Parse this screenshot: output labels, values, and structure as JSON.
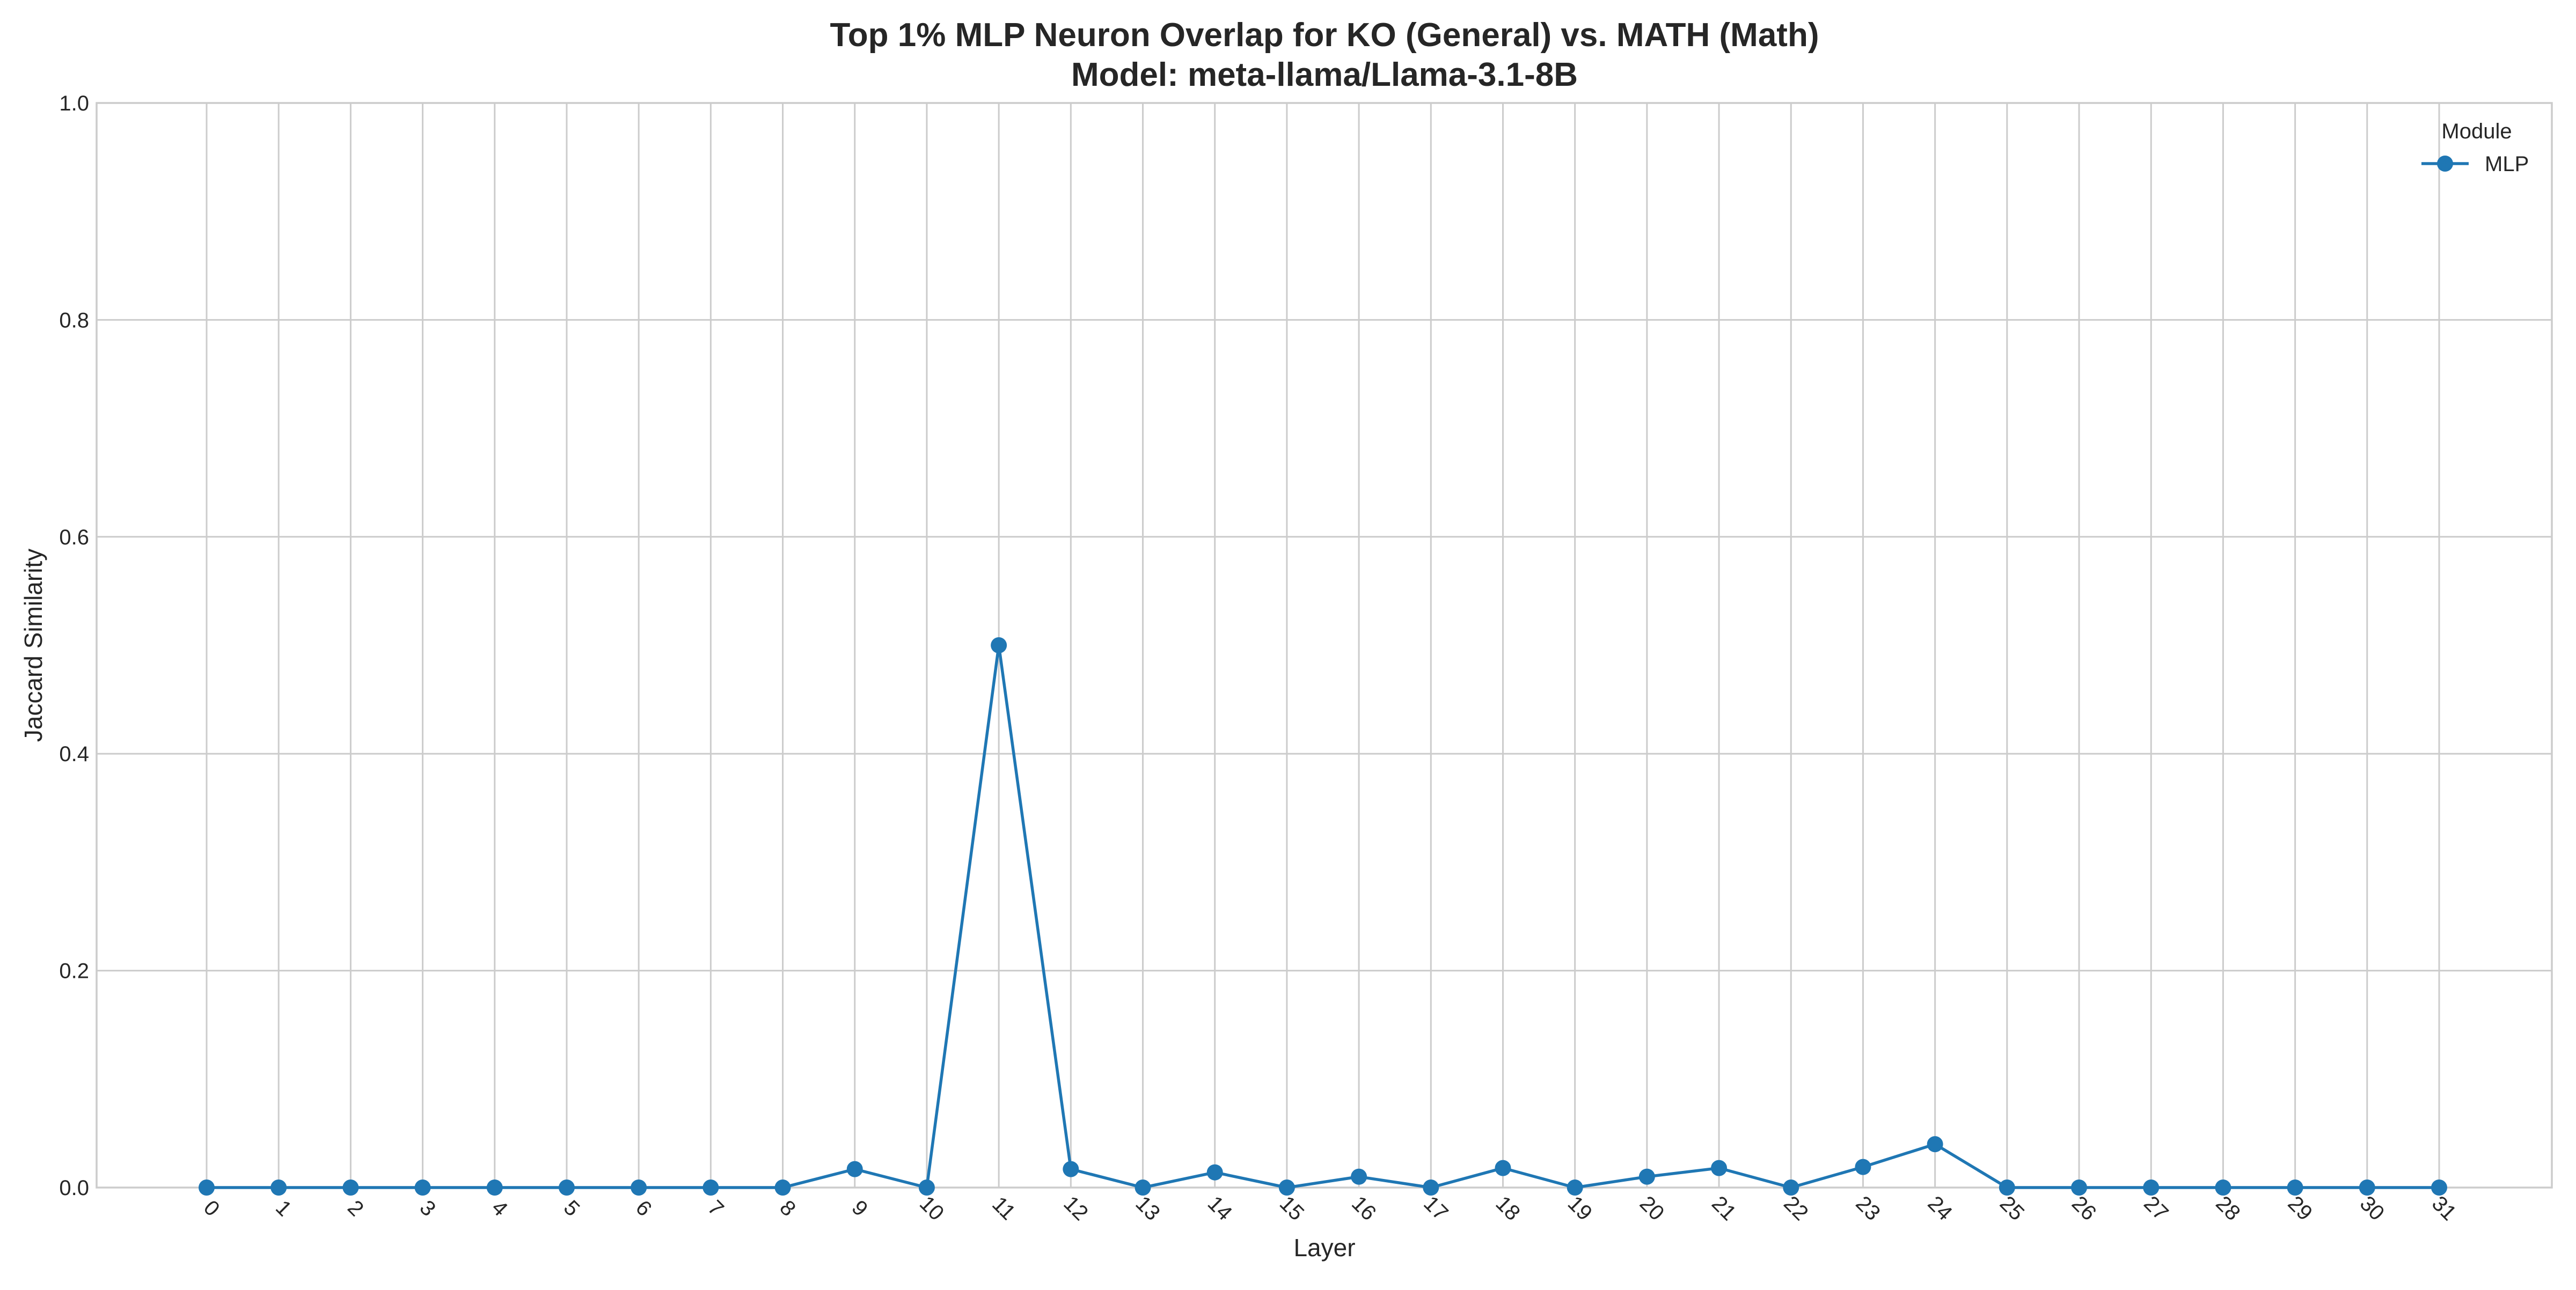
{
  "chart_data": {
    "type": "line",
    "title": "Top 1% MLP Neuron Overlap for KO (General) vs. MATH (Math)",
    "subtitle": "Model: meta-llama/Llama-3.1-8B",
    "xlabel": "Layer",
    "ylabel": "Jaccard Similarity",
    "ylim": [
      0,
      1.0
    ],
    "y_ticks": [
      "0.0",
      "0.2",
      "0.4",
      "0.6",
      "0.8",
      "1.0"
    ],
    "x": [
      0,
      1,
      2,
      3,
      4,
      5,
      6,
      7,
      8,
      9,
      10,
      11,
      12,
      13,
      14,
      15,
      16,
      17,
      18,
      19,
      20,
      21,
      22,
      23,
      24,
      25,
      26,
      27,
      28,
      29,
      30,
      31
    ],
    "x_tick_labels": [
      "0",
      "1",
      "2",
      "3",
      "4",
      "5",
      "6",
      "7",
      "8",
      "9",
      "10",
      "11",
      "12",
      "13",
      "14",
      "15",
      "16",
      "17",
      "18",
      "19",
      "20",
      "21",
      "22",
      "23",
      "24",
      "25",
      "26",
      "27",
      "28",
      "29",
      "30",
      "31"
    ],
    "series": [
      {
        "name": "MLP",
        "color": "#1f77b4",
        "values": [
          0,
          0,
          0,
          0,
          0,
          0,
          0,
          0,
          0,
          0.017,
          0,
          0.5,
          0.017,
          0,
          0.014,
          0,
          0.01,
          0,
          0.018,
          0,
          0.01,
          0.018,
          0,
          0.019,
          0.04,
          0,
          0,
          0,
          0,
          0,
          0,
          0
        ]
      }
    ],
    "grid": true,
    "legend": {
      "title": "Module",
      "placement": "top-right"
    }
  }
}
